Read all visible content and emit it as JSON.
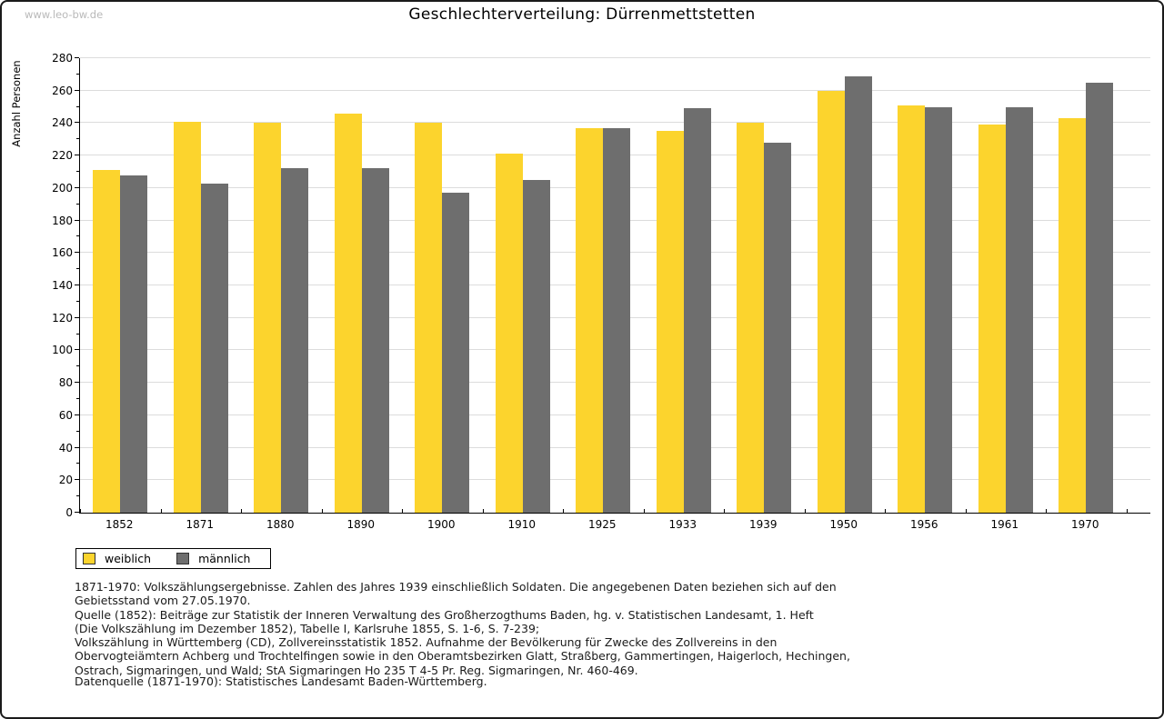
{
  "watermark": "www.leo-bw.de",
  "chart_data": {
    "type": "bar",
    "title": "Geschlechterverteilung: Dürrenmettstetten",
    "ylabel": "Anzahl Personen",
    "categories": [
      "1852",
      "1871",
      "1880",
      "1890",
      "1900",
      "1910",
      "1925",
      "1933",
      "1939",
      "1950",
      "1956",
      "1961",
      "1970"
    ],
    "series": [
      {
        "name": "weiblich",
        "color": "#FCD42D",
        "values": [
          211,
          241,
          240,
          246,
          240,
          221,
          237,
          235,
          240,
          260,
          251,
          239,
          243
        ]
      },
      {
        "name": "männlich",
        "color": "#6E6E6E",
        "values": [
          208,
          203,
          212,
          212,
          197,
          205,
          237,
          249,
          228,
          269,
          250,
          250,
          265
        ]
      }
    ],
    "ylim": [
      0,
      280
    ],
    "ytick_major": 20,
    "ytick_minor": 10,
    "grid": true,
    "legend_position": "bottom-left",
    "gridline_color": "#dcdcdc"
  },
  "caption": {
    "lines": [
      "1871-1970: Volkszählungsergebnisse. Zahlen des Jahres 1939 einschließlich Soldaten. Die angegebenen Daten beziehen sich auf den",
      "Gebietsstand vom 27.05.1970.",
      "Quelle (1852): Beiträge zur Statistik der Inneren Verwaltung des Großherzogthums Baden, hg. v. Statistischen Landesamt, 1. Heft",
      "(Die Volkszählung im Dezember 1852), Tabelle I, Karlsruhe 1855, S. 1-6, S. 7-239;",
      "Volkszählung in Württemberg (CD), Zollvereinsstatistik 1852. Aufnahme der Bevölkerung für Zwecke des Zollvereins in den",
      "Obervogteiämtern Achberg und Trochtelfingen sowie in den Oberamtsbezirken Glatt, Straßberg, Gammertingen, Haigerloch, Hechingen,",
      "Ostrach, Sigmaringen, und Wald; StA Sigmaringen Ho 235 T 4-5 Pr. Reg. Sigmaringen, Nr. 460-469."
    ],
    "datasource": "Datenquelle (1871-1970): Statistisches Landesamt Baden-Württemberg."
  }
}
